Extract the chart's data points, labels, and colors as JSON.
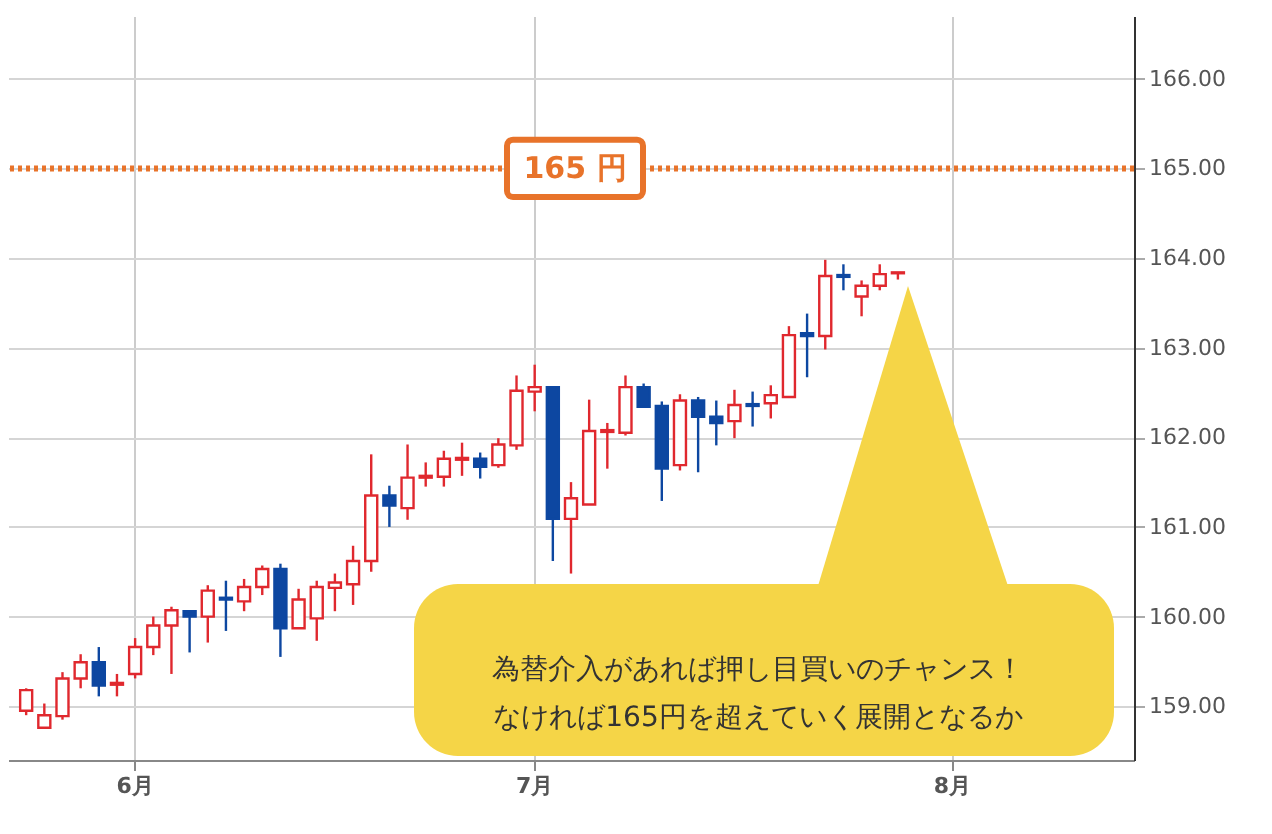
{
  "chart_data": {
    "type": "candlestick",
    "categories": [
      null,
      null,
      null,
      null,
      null,
      null,
      "6月",
      null,
      null,
      null,
      null,
      null,
      null,
      null,
      null,
      null,
      null,
      null,
      null,
      null,
      null,
      null,
      null,
      null,
      null,
      null,
      null,
      null,
      "7月",
      null,
      null,
      null,
      null,
      null,
      null,
      null,
      null,
      null,
      null,
      null,
      null,
      null,
      null,
      null,
      null,
      null,
      null,
      null,
      null,
      null,
      null,
      "8月",
      null,
      null,
      null,
      null,
      null,
      null,
      null,
      null,
      null
    ],
    "ohlc": [
      [
        158.95,
        159.2,
        158.9,
        159.18
      ],
      [
        158.76,
        159.03,
        158.75,
        158.9
      ],
      [
        158.89,
        159.38,
        158.85,
        159.31
      ],
      [
        159.31,
        159.58,
        159.2,
        159.49
      ],
      [
        159.49,
        159.66,
        159.11,
        159.23
      ],
      [
        159.24,
        159.36,
        159.11,
        159.26
      ],
      [
        159.36,
        159.76,
        159.31,
        159.66
      ],
      [
        159.66,
        160.0,
        159.57,
        159.9
      ],
      [
        159.9,
        160.11,
        159.36,
        160.07
      ],
      [
        160.06,
        160.06,
        159.6,
        160.0
      ],
      [
        160.0,
        160.35,
        159.71,
        160.29
      ],
      [
        160.21,
        160.4,
        159.84,
        160.19
      ],
      [
        160.17,
        160.42,
        160.06,
        160.33
      ],
      [
        160.33,
        160.57,
        160.24,
        160.53
      ],
      [
        160.53,
        160.59,
        159.55,
        159.87
      ],
      [
        159.87,
        160.31,
        159.87,
        160.19
      ],
      [
        159.98,
        160.4,
        159.73,
        160.33
      ],
      [
        160.32,
        160.48,
        160.06,
        160.38
      ],
      [
        160.36,
        160.79,
        160.13,
        160.62
      ],
      [
        160.62,
        161.81,
        160.5,
        161.35
      ],
      [
        161.35,
        161.46,
        161.0,
        161.24
      ],
      [
        161.21,
        161.92,
        161.08,
        161.55
      ],
      [
        161.55,
        161.72,
        161.45,
        161.57
      ],
      [
        161.56,
        161.85,
        161.45,
        161.76
      ],
      [
        161.75,
        161.94,
        161.57,
        161.77
      ],
      [
        161.76,
        161.83,
        161.54,
        161.67
      ],
      [
        161.69,
        161.99,
        161.66,
        161.92
      ],
      [
        161.91,
        162.69,
        161.86,
        162.52
      ],
      [
        162.51,
        162.81,
        162.29,
        162.56
      ],
      [
        162.56,
        162.56,
        160.62,
        161.09
      ],
      [
        161.09,
        161.5,
        160.48,
        161.32
      ],
      [
        161.25,
        162.42,
        161.25,
        162.07
      ],
      [
        162.06,
        162.16,
        161.65,
        162.08
      ],
      [
        162.05,
        162.69,
        162.02,
        162.56
      ],
      [
        162.56,
        162.6,
        162.34,
        162.34
      ],
      [
        162.35,
        162.4,
        161.29,
        161.65
      ],
      [
        161.69,
        162.48,
        161.63,
        162.41
      ],
      [
        162.41,
        162.45,
        161.61,
        162.23
      ],
      [
        162.23,
        162.41,
        161.91,
        162.16
      ],
      [
        162.18,
        162.53,
        161.99,
        162.36
      ],
      [
        162.37,
        162.51,
        162.12,
        162.35
      ],
      [
        162.38,
        162.58,
        162.21,
        162.47
      ],
      [
        162.45,
        163.24,
        162.45,
        163.14
      ],
      [
        163.16,
        163.38,
        162.67,
        163.13
      ],
      [
        163.13,
        163.98,
        162.98,
        163.8
      ],
      [
        163.81,
        163.93,
        163.64,
        163.79
      ],
      [
        163.57,
        163.75,
        163.35,
        163.69
      ],
      [
        163.69,
        163.93,
        163.64,
        163.82
      ],
      [
        163.83,
        163.84,
        163.76,
        163.84
      ],
      null,
      null,
      null,
      null,
      null,
      null,
      null,
      null,
      null,
      null,
      null,
      null
    ],
    "colors": [
      "#e0282e",
      "#e0282e",
      "#e0282e",
      "#e0282e",
      "#0d47a1",
      "#e0282e",
      "#e0282e",
      "#e0282e",
      "#e0282e",
      "#0d47a1",
      "#e0282e",
      "#0d47a1",
      "#e0282e",
      "#e0282e",
      "#0d47a1",
      "#e0282e",
      "#e0282e",
      "#e0282e",
      "#e0282e",
      "#e0282e",
      "#0d47a1",
      "#e0282e",
      "#e0282e",
      "#e0282e",
      "#e0282e",
      "#0d47a1",
      "#e0282e",
      "#e0282e",
      "#e0282e",
      "#0d47a1",
      "#e0282e",
      "#e0282e",
      "#e0282e",
      "#e0282e",
      "#0d47a1",
      "#0d47a1",
      "#e0282e",
      "#0d47a1",
      "#0d47a1",
      "#e0282e",
      "#0d47a1",
      "#e0282e",
      "#e0282e",
      "#0d47a1",
      "#e0282e",
      "#0d47a1",
      "#e0282e",
      "#e0282e",
      "#e0282e",
      null,
      null,
      null,
      null,
      null,
      null,
      null,
      null,
      null,
      null,
      null,
      null
    ],
    "ylim": [
      158.4,
      166.7
    ],
    "yticks": [
      {
        "value": 159,
        "label": "159.00"
      },
      {
        "value": 160,
        "label": "160.00"
      },
      {
        "value": 161,
        "label": "161.00"
      },
      {
        "value": 162,
        "label": "162.00"
      },
      {
        "value": 163,
        "label": "163.00"
      },
      {
        "value": 164,
        "label": "164.00"
      },
      {
        "value": 165,
        "label": "165.00"
      },
      {
        "value": 166,
        "label": "166.00"
      }
    ],
    "grid": true,
    "ref_lines": [
      {
        "axis": "y",
        "value": 165,
        "label": "165 円",
        "color": "#e8732a",
        "line_style": "dotted"
      }
    ],
    "annotations": [
      "為替介入があれば押し目買いのチャンス！なければ165円を超えていく展開となるか"
    ]
  }
}
